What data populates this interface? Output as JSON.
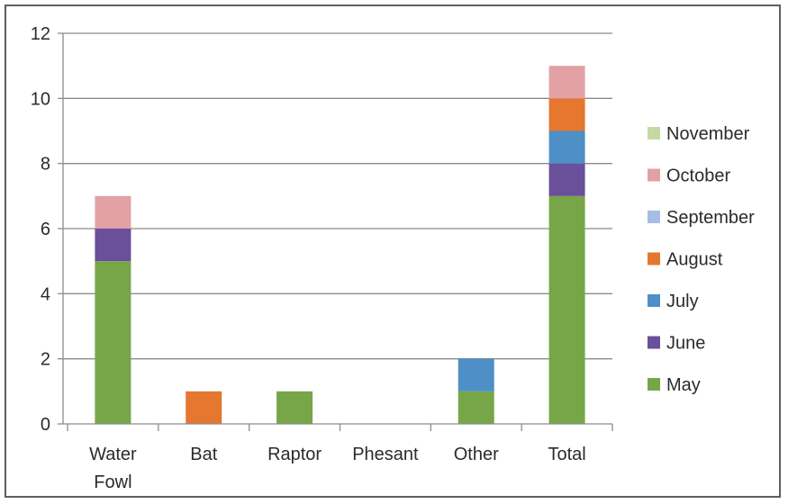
{
  "chart_data": {
    "type": "bar",
    "stacked": true,
    "categories": [
      "Water Fowl",
      "Bat",
      "Raptor",
      "Phesant",
      "Other",
      "Total"
    ],
    "series": [
      {
        "name": "May",
        "color": "#77a649",
        "values": [
          5,
          0,
          1,
          0,
          1,
          7
        ]
      },
      {
        "name": "June",
        "color": "#6a4f9a",
        "values": [
          1,
          0,
          0,
          0,
          0,
          1
        ]
      },
      {
        "name": "July",
        "color": "#4d8fc6",
        "values": [
          0,
          0,
          0,
          0,
          1,
          1
        ]
      },
      {
        "name": "August",
        "color": "#e5772f",
        "values": [
          0,
          1,
          0,
          0,
          0,
          1
        ]
      },
      {
        "name": "September",
        "color": "#a6bde6",
        "values": [
          0,
          0,
          0,
          0,
          0,
          0
        ]
      },
      {
        "name": "October",
        "color": "#e2a1a4",
        "values": [
          1,
          0,
          0,
          0,
          0,
          1
        ]
      },
      {
        "name": "November",
        "color": "#c5d9a3",
        "values": [
          0,
          0,
          0,
          0,
          0,
          0
        ]
      }
    ],
    "ylim": [
      0,
      12
    ],
    "yticks": [
      0,
      2,
      4,
      6,
      8,
      10,
      12
    ],
    "grid": true,
    "legend": "right",
    "legend_order": [
      "November",
      "October",
      "September",
      "August",
      "July",
      "June",
      "May"
    ]
  }
}
